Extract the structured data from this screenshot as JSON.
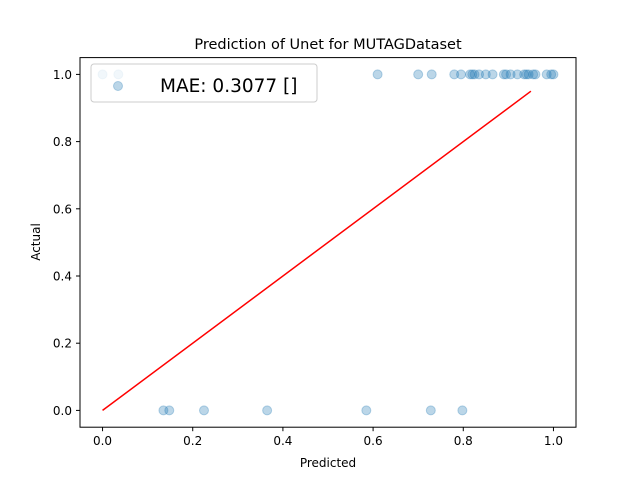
{
  "chart_data": {
    "type": "scatter",
    "title": "Prediction of Unet for MUTAGDataset",
    "xlabel": "Predicted",
    "ylabel": "Actual",
    "xlim": [
      -0.05,
      1.05
    ],
    "ylim": [
      -0.05,
      1.05
    ],
    "xticks": [
      0.0,
      0.2,
      0.4,
      0.6,
      0.8,
      1.0
    ],
    "xtick_labels": [
      "0.0",
      "0.2",
      "0.4",
      "0.6",
      "0.8",
      "1.0"
    ],
    "yticks": [
      0.0,
      0.2,
      0.4,
      0.6,
      0.8,
      1.0
    ],
    "ytick_labels": [
      "0.0",
      "0.2",
      "0.4",
      "0.6",
      "0.8",
      "1.0"
    ],
    "grid": false,
    "legend": {
      "text": "MAE: 0.3077 []",
      "placement": "top-left"
    },
    "marker_color": "#1f77b4",
    "marker_alpha": 0.3,
    "line_color": "#ff0000",
    "line": {
      "x": [
        0.0,
        0.95
      ],
      "y": [
        0.0,
        0.95
      ]
    },
    "points": [
      {
        "x": 0.0,
        "y": 1
      },
      {
        "x": 0.035,
        "y": 1
      },
      {
        "x": 0.61,
        "y": 1
      },
      {
        "x": 0.7,
        "y": 1
      },
      {
        "x": 0.73,
        "y": 1
      },
      {
        "x": 0.78,
        "y": 1
      },
      {
        "x": 0.795,
        "y": 1
      },
      {
        "x": 0.815,
        "y": 1
      },
      {
        "x": 0.82,
        "y": 1
      },
      {
        "x": 0.825,
        "y": 1
      },
      {
        "x": 0.835,
        "y": 1
      },
      {
        "x": 0.85,
        "y": 1
      },
      {
        "x": 0.865,
        "y": 1
      },
      {
        "x": 0.89,
        "y": 1
      },
      {
        "x": 0.895,
        "y": 1
      },
      {
        "x": 0.905,
        "y": 1
      },
      {
        "x": 0.92,
        "y": 1
      },
      {
        "x": 0.935,
        "y": 1
      },
      {
        "x": 0.94,
        "y": 1
      },
      {
        "x": 0.945,
        "y": 1
      },
      {
        "x": 0.955,
        "y": 1
      },
      {
        "x": 0.96,
        "y": 1
      },
      {
        "x": 0.985,
        "y": 1
      },
      {
        "x": 0.995,
        "y": 1
      },
      {
        "x": 1.0,
        "y": 1
      },
      {
        "x": 0.135,
        "y": 0
      },
      {
        "x": 0.148,
        "y": 0
      },
      {
        "x": 0.225,
        "y": 0
      },
      {
        "x": 0.365,
        "y": 0
      },
      {
        "x": 0.585,
        "y": 0
      },
      {
        "x": 0.728,
        "y": 0
      },
      {
        "x": 0.798,
        "y": 0
      }
    ]
  }
}
